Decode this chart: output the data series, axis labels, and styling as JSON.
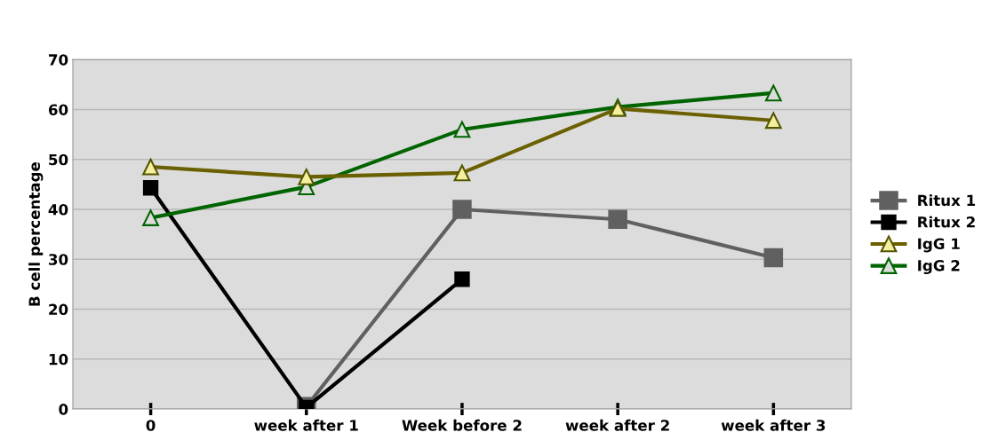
{
  "chart_data": {
    "type": "line",
    "ylabel": "B cell percentage",
    "categories": [
      "0",
      "week after 1",
      "Week before 2",
      "week after 2",
      "week after 3"
    ],
    "series": [
      {
        "name": "Ritux 1",
        "color": "#606060",
        "marker": "square",
        "values": [
          null,
          0.5,
          40,
          38,
          30.3
        ]
      },
      {
        "name": "Ritux 2",
        "color": "#000000",
        "marker": "square",
        "values": [
          44.3,
          0.3,
          26,
          null,
          null
        ]
      },
      {
        "name": "IgG 1",
        "color": "#6b6000",
        "marker": "triangle",
        "values": [
          48.5,
          46.5,
          47.3,
          60.2,
          57.8
        ]
      },
      {
        "name": "IgG 2",
        "color": "#006400",
        "marker": "triangle",
        "values": [
          38.3,
          44.5,
          56,
          60.5,
          63.3
        ]
      }
    ],
    "ylim": [
      0,
      70
    ],
    "yticks": [
      0,
      10,
      20,
      30,
      40,
      50,
      60,
      70
    ],
    "grid": "y",
    "legend": "right"
  }
}
